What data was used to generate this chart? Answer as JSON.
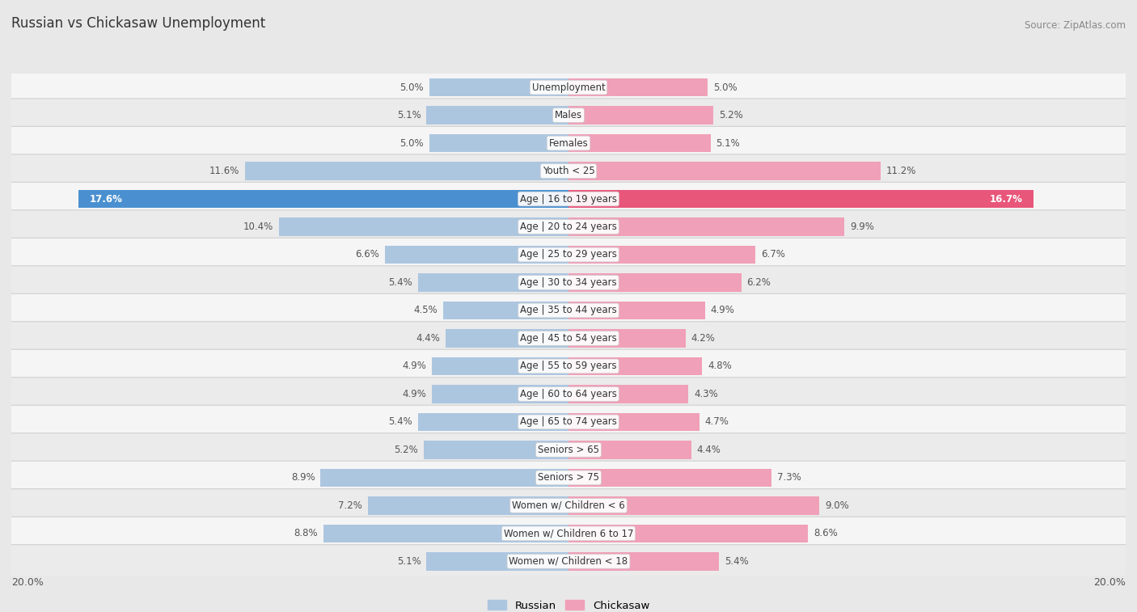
{
  "title": "Russian vs Chickasaw Unemployment",
  "source": "Source: ZipAtlas.com",
  "categories": [
    "Unemployment",
    "Males",
    "Females",
    "Youth < 25",
    "Age | 16 to 19 years",
    "Age | 20 to 24 years",
    "Age | 25 to 29 years",
    "Age | 30 to 34 years",
    "Age | 35 to 44 years",
    "Age | 45 to 54 years",
    "Age | 55 to 59 years",
    "Age | 60 to 64 years",
    "Age | 65 to 74 years",
    "Seniors > 65",
    "Seniors > 75",
    "Women w/ Children < 6",
    "Women w/ Children 6 to 17",
    "Women w/ Children < 18"
  ],
  "russian": [
    5.0,
    5.1,
    5.0,
    11.6,
    17.6,
    10.4,
    6.6,
    5.4,
    4.5,
    4.4,
    4.9,
    4.9,
    5.4,
    5.2,
    8.9,
    7.2,
    8.8,
    5.1
  ],
  "chickasaw": [
    5.0,
    5.2,
    5.1,
    11.2,
    16.7,
    9.9,
    6.7,
    6.2,
    4.9,
    4.2,
    4.8,
    4.3,
    4.7,
    4.4,
    7.3,
    9.0,
    8.6,
    5.4
  ],
  "russian_color": "#adc6e0",
  "chickasaw_color": "#f0a0b8",
  "russian_highlight_color": "#4a90d0",
  "chickasaw_highlight_color": "#e8567a",
  "max_val": 20.0,
  "bg_color": "#e8e8e8",
  "row_bg_odd": "#f5f5f5",
  "row_bg_even": "#ebebeb",
  "label_fontsize": 8.5,
  "value_fontsize": 8.5,
  "title_fontsize": 12,
  "legend_labels": [
    "Russian",
    "Chickasaw"
  ]
}
